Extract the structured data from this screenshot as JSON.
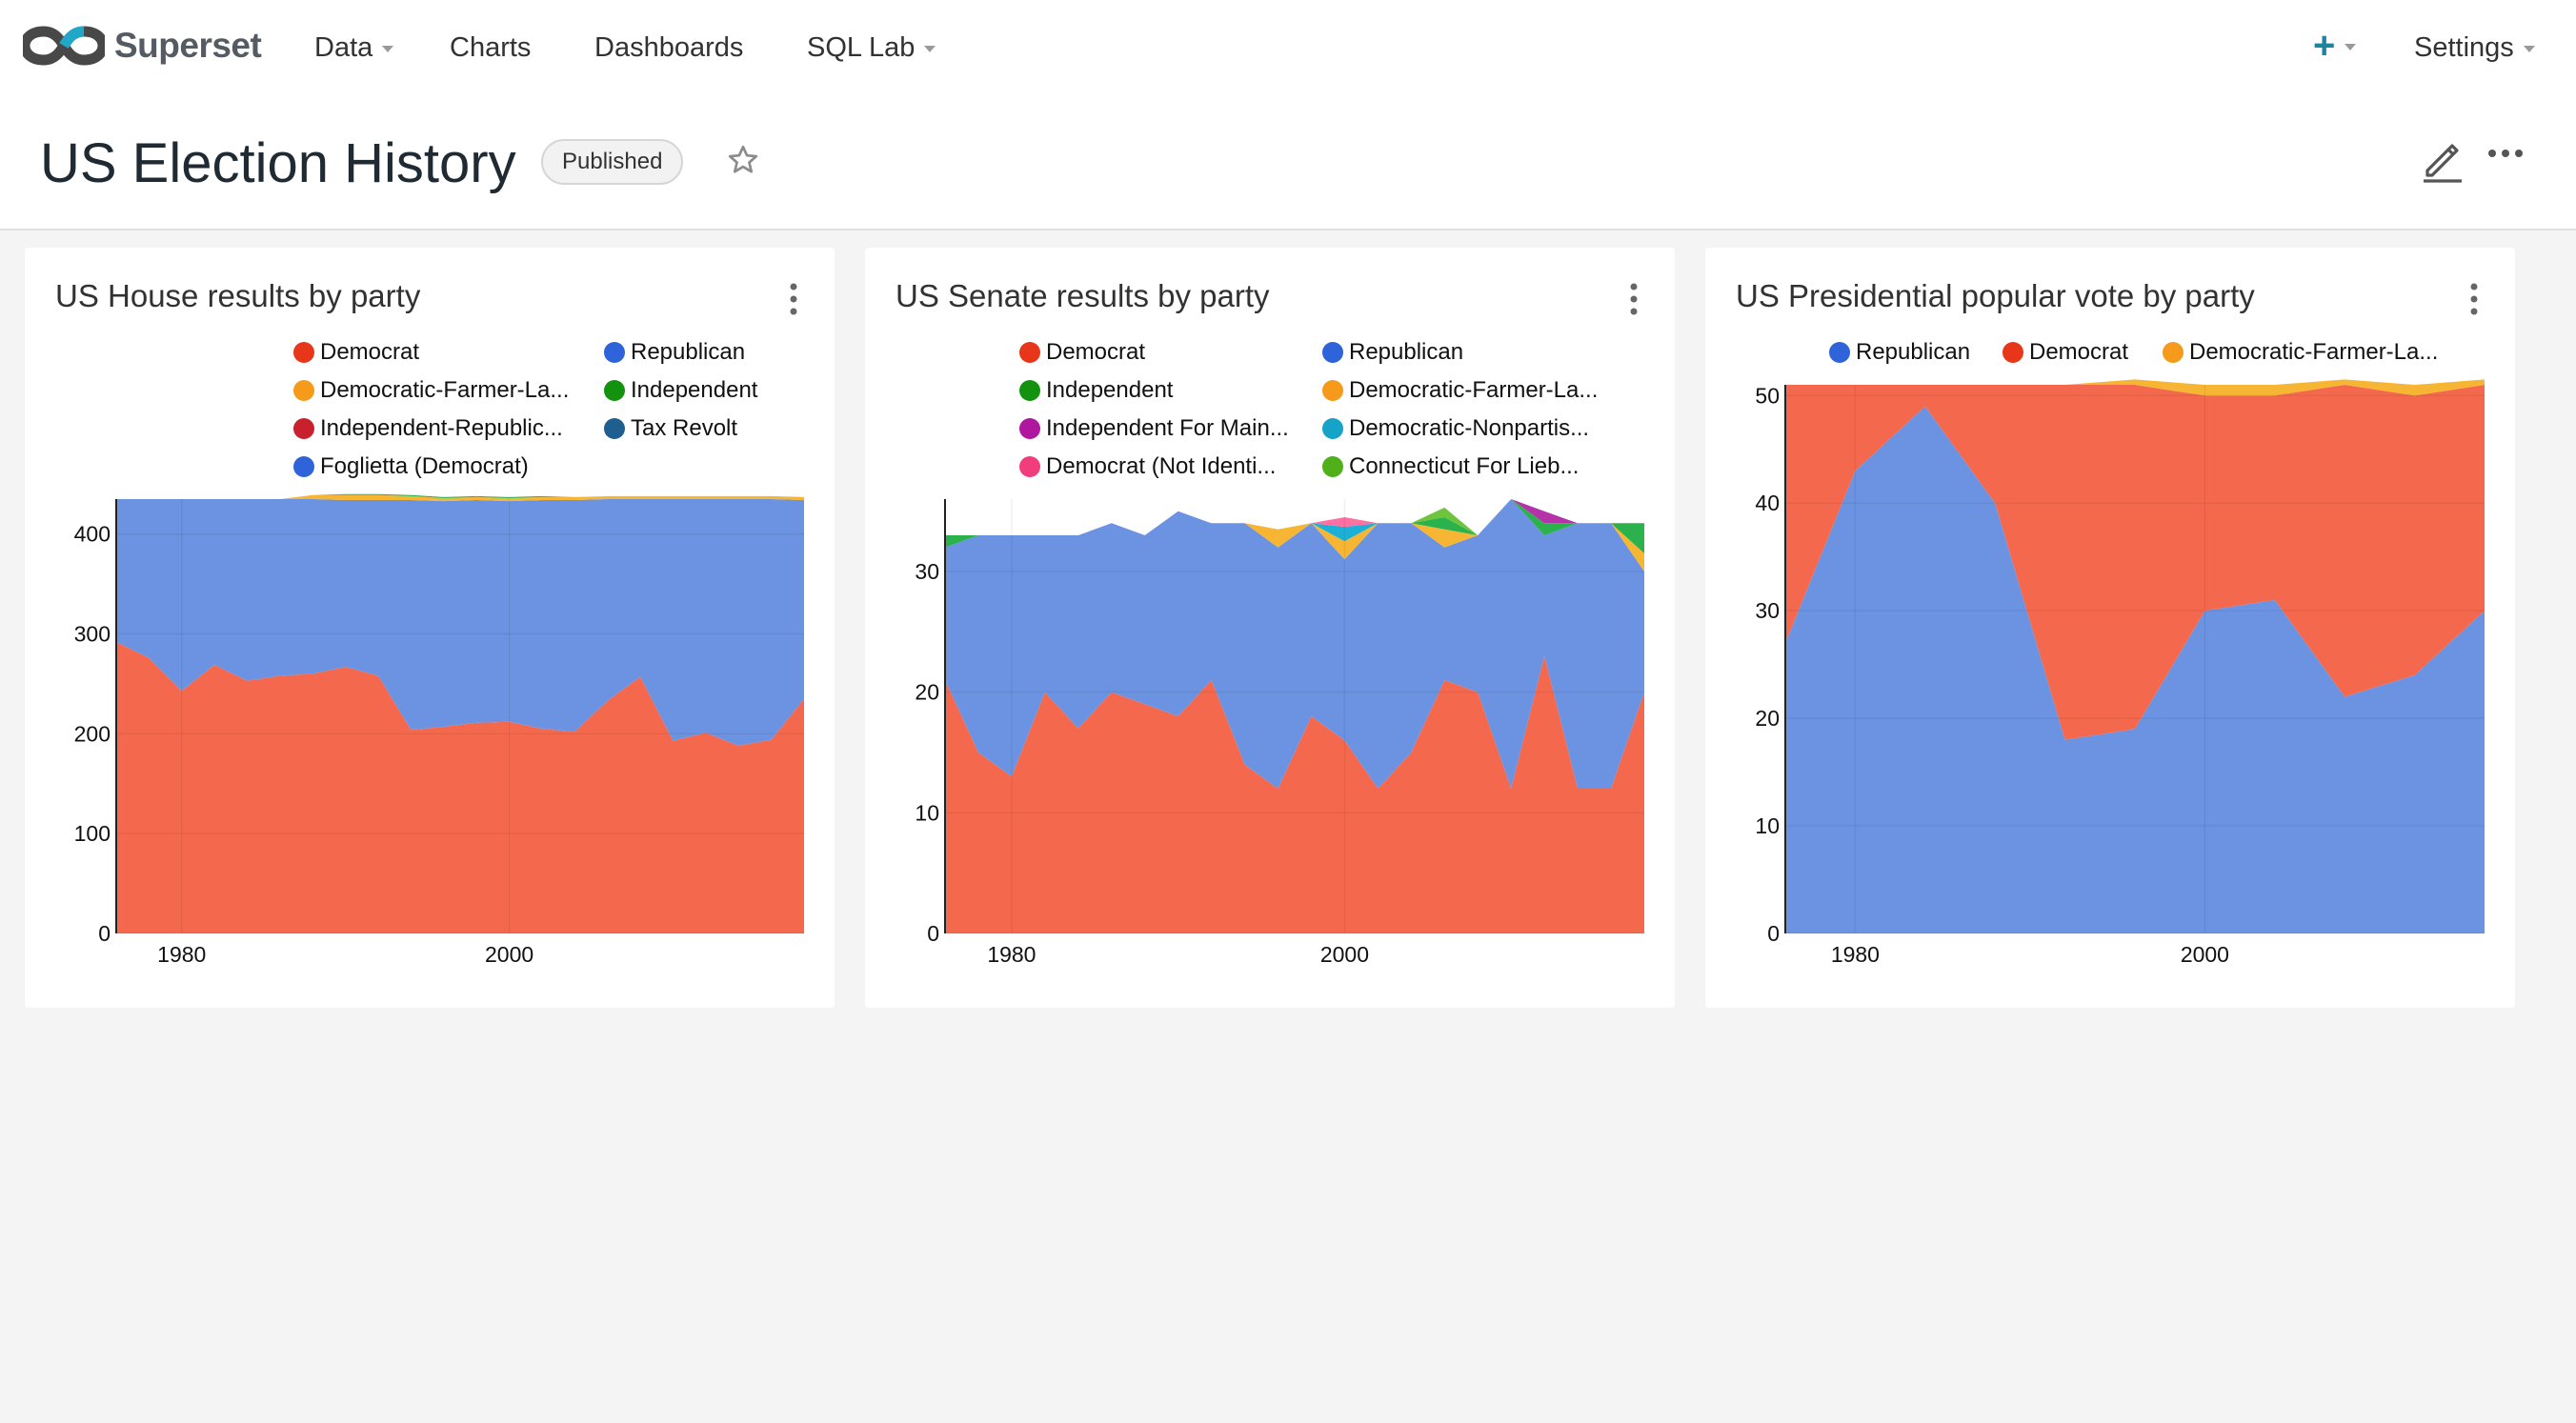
{
  "app": {
    "brand": "Superset",
    "nav": [
      {
        "label": "Data",
        "has_caret": true
      },
      {
        "label": "Charts",
        "has_caret": false
      },
      {
        "label": "Dashboards",
        "has_caret": false
      },
      {
        "label": "SQL Lab",
        "has_caret": true
      }
    ],
    "plus_icon": "plus-icon",
    "settings_label": "Settings"
  },
  "dashboard": {
    "title": "US Election History",
    "status": "Published"
  },
  "colors": {
    "democrat": "#f4694d",
    "republican": "#6b93e2",
    "dfl": "#f7b534",
    "independent": "#2bb24c",
    "purple": "#b533a8",
    "cyan": "#1cb0d6",
    "pink": "#ff6fa1",
    "lime": "#6ec43c"
  },
  "charts": [
    {
      "title": "US House results by party",
      "legend": [
        {
          "label": "Democrat",
          "color": "#e8361b"
        },
        {
          "label": "Republican",
          "color": "#2f63d9"
        },
        {
          "label": "Democratic-Farmer-La...",
          "color": "#f59a1b"
        },
        {
          "label": "Independent",
          "color": "#13920f"
        },
        {
          "label": "Independent-Republic...",
          "color": "#c8202c"
        },
        {
          "label": "Tax Revolt",
          "color": "#1f5f8f"
        },
        {
          "label": "Foglietta (Democrat)",
          "color": "#2f63d9"
        }
      ]
    },
    {
      "title": "US Senate results by party",
      "legend": [
        {
          "label": "Democrat",
          "color": "#e8361b"
        },
        {
          "label": "Republican",
          "color": "#2f63d9"
        },
        {
          "label": "Independent",
          "color": "#13920f"
        },
        {
          "label": "Democratic-Farmer-La...",
          "color": "#f59a1b"
        },
        {
          "label": "Independent For Main...",
          "color": "#b0169e"
        },
        {
          "label": "Democratic-Nonpartis...",
          "color": "#15a3c7"
        },
        {
          "label": "Democrat (Not Identi...",
          "color": "#f23d7c"
        },
        {
          "label": "Connecticut For Lieb...",
          "color": "#4fb01a"
        }
      ]
    },
    {
      "title": "US Presidential popular vote by party",
      "legend": [
        {
          "label": "Republican",
          "color": "#2f63d9"
        },
        {
          "label": "Democrat",
          "color": "#e8361b"
        },
        {
          "label": "Democratic-Farmer-La...",
          "color": "#f59a1b"
        }
      ]
    }
  ],
  "chart_data": [
    {
      "type": "area",
      "stacked": true,
      "title": "US House results by party",
      "x": [
        1976,
        1978,
        1980,
        1982,
        1984,
        1986,
        1988,
        1990,
        1992,
        1994,
        1996,
        1998,
        2000,
        2002,
        2004,
        2006,
        2008,
        2010,
        2012,
        2014,
        2016,
        2018
      ],
      "series": [
        {
          "name": "Democrat",
          "color": "#f4694d",
          "values": [
            292,
            276,
            243,
            269,
            253,
            258,
            260,
            267,
            258,
            204,
            207,
            211,
            212,
            205,
            202,
            233,
            257,
            193,
            201,
            188,
            194,
            235
          ]
        },
        {
          "name": "Republican",
          "color": "#6b93e2",
          "values": [
            143,
            159,
            192,
            166,
            182,
            177,
            175,
            167,
            176,
            230,
            226,
            223,
            221,
            229,
            232,
            202,
            178,
            242,
            234,
            247,
            241,
            199
          ]
        },
        {
          "name": "Democratic-Farmer-La...",
          "color": "#f7b534",
          "values": [
            0,
            0,
            0,
            0,
            0,
            0,
            4,
            5,
            5,
            4,
            3,
            3,
            3,
            3,
            3,
            3,
            3,
            3,
            3,
            3,
            3,
            3
          ]
        },
        {
          "name": "Independent",
          "color": "#2bb24c",
          "values": [
            0,
            0,
            0,
            0,
            0,
            0,
            0,
            1,
            1,
            1,
            1,
            1,
            1,
            1,
            0,
            0,
            0,
            0,
            0,
            0,
            0,
            0
          ]
        }
      ],
      "xticks": [
        "1980",
        "2000"
      ],
      "yticks": [
        "0",
        "100",
        "200",
        "300",
        "400"
      ],
      "xlim": [
        1976,
        2018
      ],
      "ylim": [
        0,
        435
      ]
    },
    {
      "type": "area",
      "stacked": true,
      "title": "US Senate results by party",
      "x": [
        1976,
        1978,
        1980,
        1982,
        1984,
        1986,
        1988,
        1990,
        1992,
        1994,
        1996,
        1998,
        2000,
        2002,
        2004,
        2006,
        2008,
        2010,
        2012,
        2014,
        2016,
        2018
      ],
      "series": [
        {
          "name": "Democrat",
          "color": "#f4694d",
          "values": [
            21,
            15,
            13,
            20,
            17,
            20,
            19,
            18,
            21,
            14,
            12,
            18,
            16,
            12,
            15,
            21,
            20,
            12,
            23,
            12,
            12,
            20
          ]
        },
        {
          "name": "Republican",
          "color": "#6b93e2",
          "values": [
            11,
            18,
            20,
            13,
            16,
            14,
            14,
            17,
            13,
            20,
            20,
            16,
            15,
            22,
            19,
            11,
            13,
            24,
            10,
            22,
            22,
            10
          ]
        },
        {
          "name": "Democratic-Farmer-La...",
          "color": "#f7b534",
          "values": [
            0,
            0,
            0,
            0,
            0,
            0,
            0,
            0,
            0,
            0,
            1.5,
            0,
            1.5,
            0,
            0,
            1.5,
            0,
            0,
            0,
            0,
            0,
            1.5
          ]
        },
        {
          "name": "Independent",
          "color": "#2bb24c",
          "values": [
            1,
            0,
            0,
            0,
            0,
            0,
            0,
            0,
            0,
            0,
            0,
            0,
            0,
            0,
            0,
            1,
            0,
            0,
            1,
            0,
            0,
            2.5
          ]
        },
        {
          "name": "Independent For Main...",
          "color": "#b533a8",
          "values": [
            0,
            0,
            0,
            0,
            0,
            0,
            0,
            0,
            0,
            0,
            0,
            0,
            0,
            0,
            0,
            0,
            0,
            0,
            1,
            0,
            0,
            0
          ]
        },
        {
          "name": "Democratic-Nonpartis...",
          "color": "#1cb0d6",
          "values": [
            0,
            0,
            0,
            0,
            0,
            0,
            0,
            0,
            0,
            0,
            0,
            0,
            1.2,
            0,
            0,
            0,
            0,
            0,
            0,
            0,
            0,
            0
          ]
        },
        {
          "name": "Democrat (Not Identi...",
          "color": "#ff6fa1",
          "values": [
            0,
            0,
            0,
            0,
            0,
            0,
            0,
            0,
            0,
            0,
            0,
            0,
            0.8,
            0,
            0,
            0,
            0,
            0,
            0,
            0,
            0,
            0
          ]
        },
        {
          "name": "Connecticut For Lieb...",
          "color": "#6ec43c",
          "values": [
            0,
            0,
            0,
            0,
            0,
            0,
            0,
            0,
            0,
            0,
            0,
            0,
            0,
            0,
            0,
            0.8,
            0,
            0,
            0,
            0,
            0,
            0
          ]
        }
      ],
      "xticks": [
        "1980",
        "2000"
      ],
      "yticks": [
        "0",
        "10",
        "20",
        "30"
      ],
      "xlim": [
        1976,
        2018
      ],
      "ylim": [
        0,
        36
      ]
    },
    {
      "type": "area",
      "stacked": true,
      "title": "US Presidential popular vote by party",
      "x": [
        1976,
        1980,
        1984,
        1988,
        1992,
        1996,
        2000,
        2004,
        2008,
        2012,
        2016
      ],
      "series": [
        {
          "name": "Republican",
          "color": "#6b93e2",
          "values": [
            27,
            43,
            49,
            40,
            18,
            19,
            30,
            31,
            22,
            24,
            30
          ]
        },
        {
          "name": "Democrat",
          "color": "#f4694d",
          "values": [
            24,
            8,
            2,
            11,
            33,
            32,
            20,
            19,
            29,
            26,
            21
          ]
        },
        {
          "name": "Democratic-Farmer-La...",
          "color": "#f7b534",
          "values": [
            0,
            0,
            0,
            0,
            0,
            0.5,
            1,
            1,
            0.5,
            1,
            0.5
          ]
        }
      ],
      "xticks": [
        "1980",
        "2000"
      ],
      "yticks": [
        "0",
        "10",
        "20",
        "30",
        "40",
        "50"
      ],
      "xlim": [
        1976,
        2016
      ],
      "ylim": [
        0,
        51
      ]
    }
  ]
}
